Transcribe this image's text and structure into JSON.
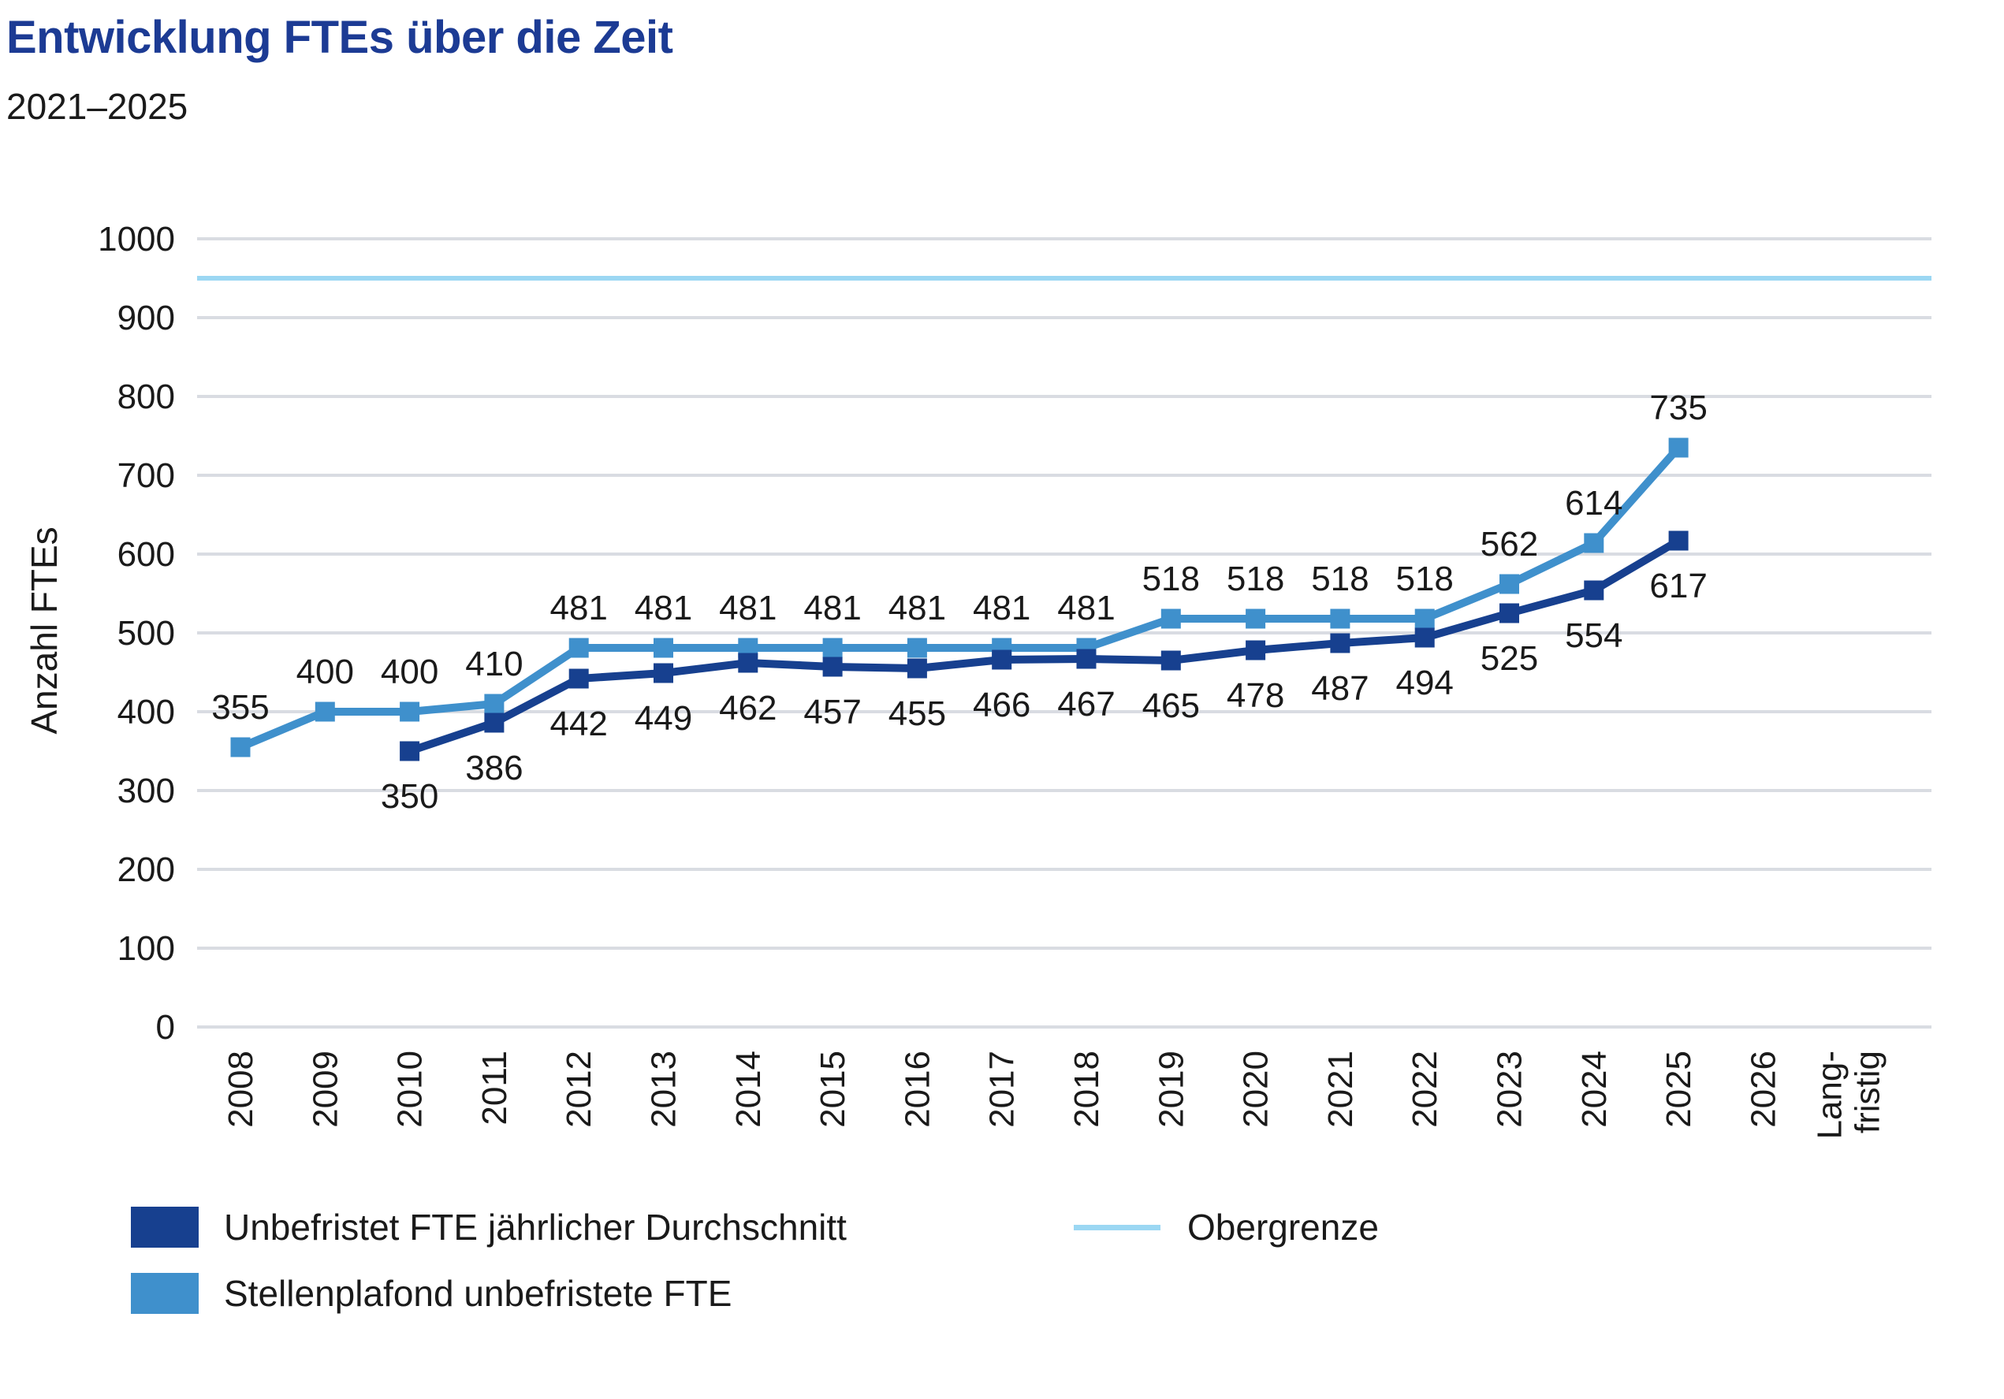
{
  "chart_data": {
    "type": "line",
    "title": "Entwicklung FTEs über die Zeit",
    "subtitle": "2021–2025",
    "title_color": "#1c3b94",
    "ylabel": "Anzahl FTEs",
    "ylim": [
      0,
      1000
    ],
    "ytick_step": 100,
    "grid": "horizontal",
    "legend_position": "bottom",
    "categories": [
      "2008",
      "2009",
      "2010",
      "2011",
      "2012",
      "2013",
      "2014",
      "2015",
      "2016",
      "2017",
      "2018",
      "2019",
      "2020",
      "2021",
      "2022",
      "2023",
      "2024",
      "2025",
      "2026",
      "Lang-\nfristig"
    ],
    "series": [
      {
        "name": "Unbefristet FTE jährlicher Durchschnitt",
        "color": "#17408f",
        "marker": "square",
        "label_position": "below",
        "values": [
          null,
          null,
          350,
          386,
          442,
          449,
          462,
          457,
          455,
          466,
          467,
          465,
          478,
          487,
          494,
          525,
          554,
          617,
          null,
          null
        ]
      },
      {
        "name": "Stellenplafond unbefristete FTE",
        "color": "#3f90cc",
        "marker": "square",
        "label_position": "above",
        "values": [
          355,
          400,
          400,
          410,
          481,
          481,
          481,
          481,
          481,
          481,
          481,
          518,
          518,
          518,
          518,
          562,
          614,
          735,
          null,
          null
        ]
      }
    ],
    "reference_line": {
      "name": "Obergrenze",
      "value": 950,
      "color": "#9bd7f3"
    }
  },
  "colors": {
    "gridline": "#d9dce2",
    "text": "#1a1a1a",
    "background": "#ffffff"
  }
}
